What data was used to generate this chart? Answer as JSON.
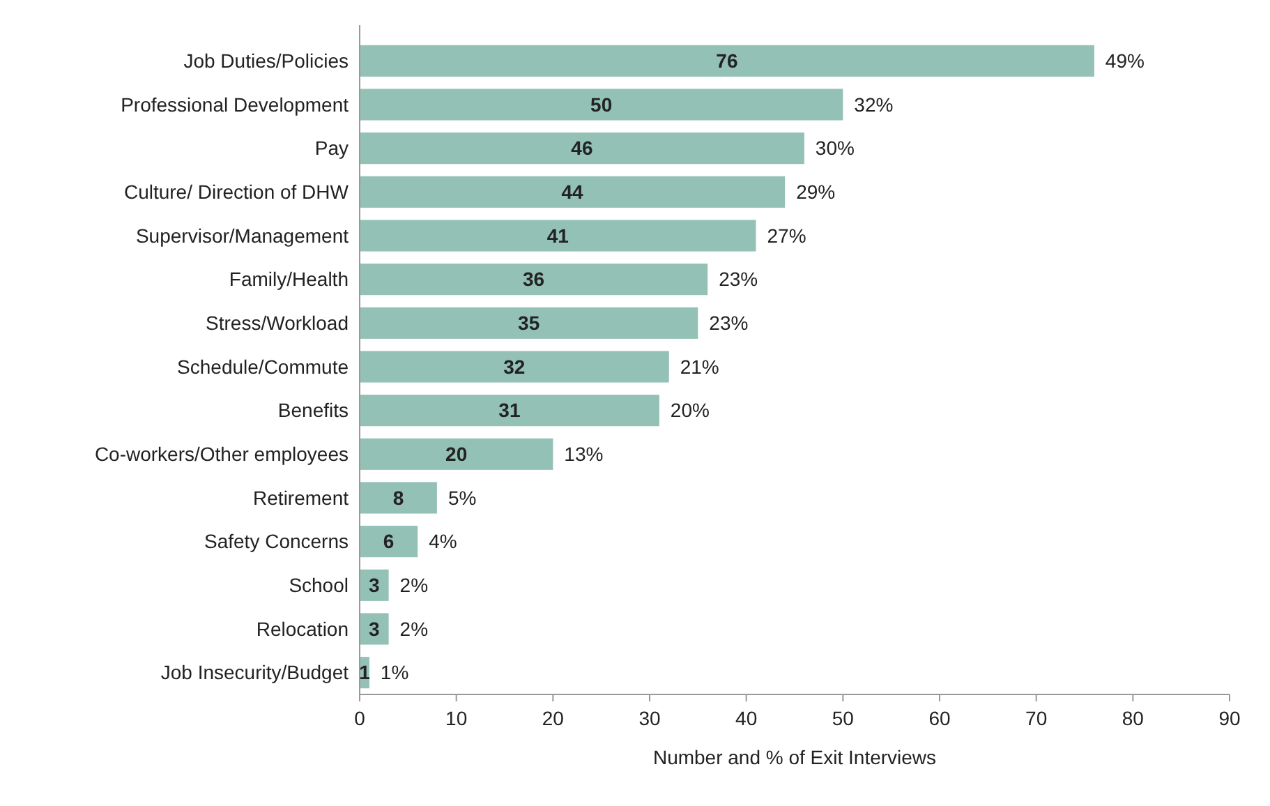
{
  "chart_data": {
    "type": "bar",
    "orientation": "horizontal",
    "xlabel": "Number and % of Exit Interviews",
    "categories": [
      "Job Duties/Policies",
      "Professional Development",
      "Pay",
      "Culture/ Direction of DHW",
      "Supervisor/Management",
      "Family/Health",
      "Stress/Workload",
      "Schedule/Commute",
      "Benefits",
      "Co-workers/Other employees",
      "Retirement",
      "Safety Concerns",
      "School",
      "Relocation",
      "Job Insecurity/Budget"
    ],
    "values": [
      76,
      50,
      46,
      44,
      41,
      36,
      35,
      32,
      31,
      20,
      8,
      6,
      3,
      3,
      1
    ],
    "color": "#93c1b6",
    "data_labels": true,
    "xlim": [
      0,
      90
    ],
    "xticks": [
      0,
      10,
      20,
      30,
      40,
      50,
      60,
      70,
      80,
      90
    ],
    "grid": false,
    "annotations": [
      {
        "text": "49%",
        "x": 76,
        "y": "Job Duties/Policies"
      },
      {
        "text": "32%",
        "x": 50,
        "y": "Professional Development"
      },
      {
        "text": "30%",
        "x": 46,
        "y": "Pay"
      },
      {
        "text": "29%",
        "x": 44,
        "y": "Culture/ Direction of DHW"
      },
      {
        "text": "27%",
        "x": 41,
        "y": "Supervisor/Management"
      },
      {
        "text": "23%",
        "x": 36,
        "y": "Family/Health"
      },
      {
        "text": "23%",
        "x": 35,
        "y": "Stress/Workload"
      },
      {
        "text": "21%",
        "x": 32,
        "y": "Schedule/Commute"
      },
      {
        "text": "20%",
        "x": 31,
        "y": "Benefits"
      },
      {
        "text": "13%",
        "x": 20,
        "y": "Co-workers/Other employees"
      },
      {
        "text": "5%",
        "x": 8,
        "y": "Retirement"
      },
      {
        "text": "4%",
        "x": 6,
        "y": "Safety Concerns"
      },
      {
        "text": "2%",
        "x": 3,
        "y": "School"
      },
      {
        "text": "2%",
        "x": 3,
        "y": "Relocation"
      },
      {
        "text": "1%",
        "x": 1,
        "y": "Job Insecurity/Budget"
      }
    ]
  }
}
